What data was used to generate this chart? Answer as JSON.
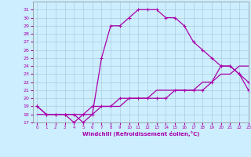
{
  "xlabel": "Windchill (Refroidissement éolien,°C)",
  "bg_color": "#cceeff",
  "grid_color": "#aaccdd",
  "line_color": "#aa00aa",
  "x_hours": [
    0,
    1,
    2,
    3,
    4,
    5,
    6,
    7,
    8,
    9,
    10,
    11,
    12,
    13,
    14,
    15,
    16,
    17,
    18,
    19,
    20,
    21,
    22,
    23
  ],
  "temp_actual": [
    19,
    18,
    18,
    18,
    18,
    17,
    18,
    25,
    29,
    29,
    30,
    31,
    31,
    31,
    30,
    30,
    29,
    27,
    26,
    25,
    24,
    24,
    23,
    22
  ],
  "windchill": [
    19,
    18,
    18,
    18,
    17,
    18,
    19,
    19,
    19,
    20,
    20,
    20,
    20,
    20,
    20,
    21,
    21,
    21,
    21,
    22,
    24,
    24,
    23,
    21
  ],
  "diagonal": [
    18,
    18,
    18,
    18,
    18,
    18,
    18,
    19,
    19,
    19,
    20,
    20,
    20,
    21,
    21,
    21,
    21,
    21,
    22,
    22,
    23,
    23,
    24,
    24
  ],
  "xlim": [
    -0.5,
    23
  ],
  "ylim": [
    17,
    32
  ]
}
